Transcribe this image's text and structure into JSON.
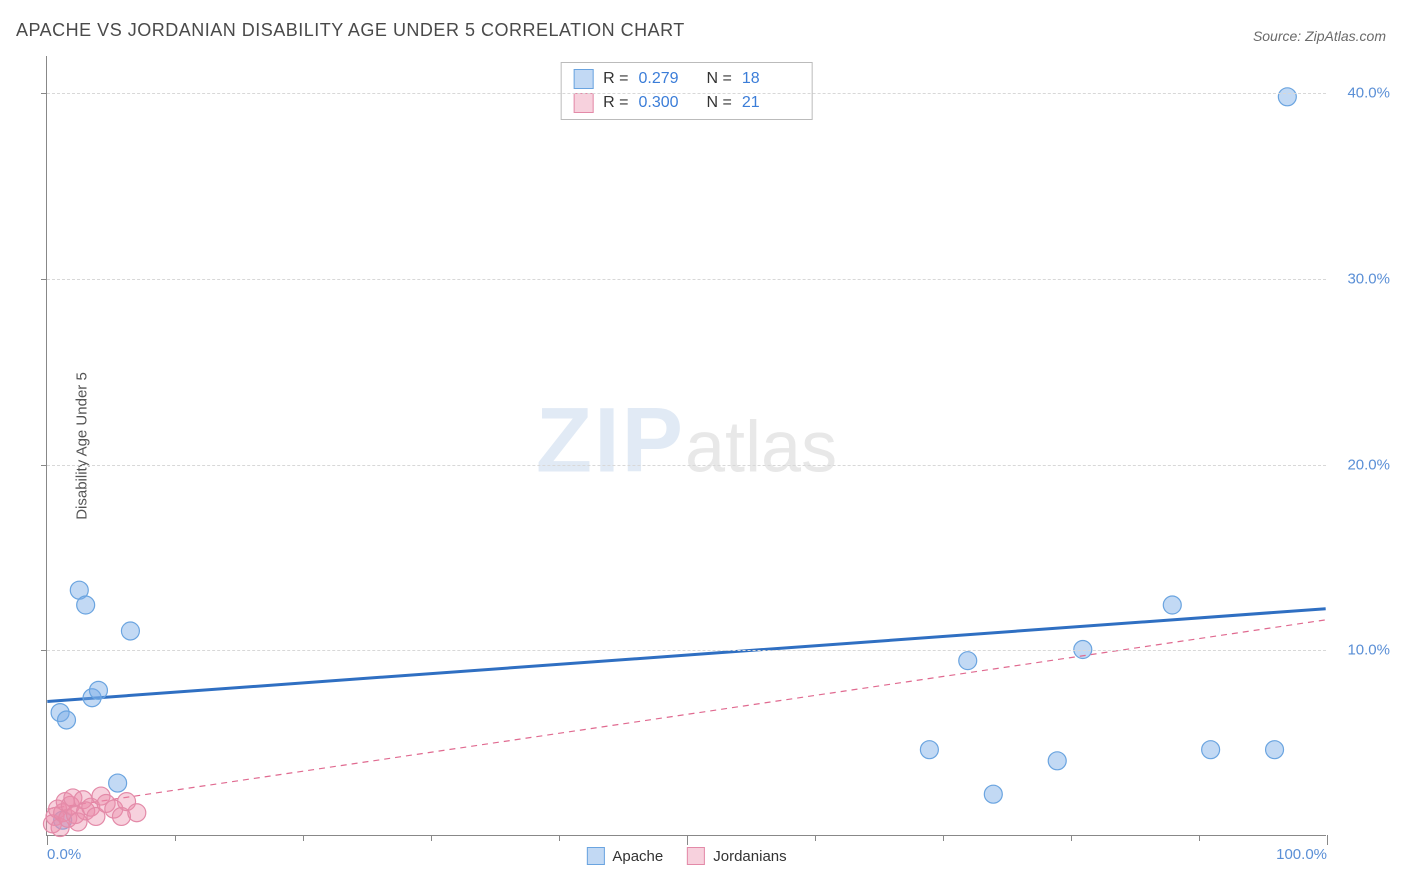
{
  "title": "APACHE VS JORDANIAN DISABILITY AGE UNDER 5 CORRELATION CHART",
  "source_label": "Source: ",
  "source_name": "ZipAtlas.com",
  "ylabel": "Disability Age Under 5",
  "watermark": {
    "zip": "ZIP",
    "atlas": "atlas"
  },
  "chart": {
    "type": "scatter",
    "xlim": [
      0,
      100
    ],
    "ylim": [
      0,
      42
    ],
    "y_gridlines": [
      10,
      20,
      30,
      40
    ],
    "y_tick_labels": [
      "10.0%",
      "20.0%",
      "30.0%",
      "40.0%"
    ],
    "x_tick_positions": [
      0,
      10,
      20,
      30,
      40,
      50,
      60,
      70,
      80,
      90,
      100
    ],
    "x_tick_labels_major": {
      "0": "0.0%",
      "100": "100.0%"
    },
    "background_color": "#ffffff",
    "grid_color": "#d8d8d8",
    "axis_color": "#888888",
    "tick_label_color": "#5a8fd6",
    "series": [
      {
        "name": "Apache",
        "color_fill": "rgba(120,170,230,0.45)",
        "color_stroke": "#6aa4e0",
        "trend_color": "#2f6fc2",
        "trend_width": 3,
        "trend_dash": "none",
        "marker_radius": 9,
        "R": "0.279",
        "N": "18",
        "trendline": {
          "x1": 0,
          "y1": 7.2,
          "x2": 100,
          "y2": 12.2
        },
        "points": [
          {
            "x": 1.0,
            "y": 6.6
          },
          {
            "x": 1.5,
            "y": 6.2
          },
          {
            "x": 2.5,
            "y": 13.2
          },
          {
            "x": 3.0,
            "y": 12.4
          },
          {
            "x": 3.5,
            "y": 7.4
          },
          {
            "x": 4.0,
            "y": 7.8
          },
          {
            "x": 5.5,
            "y": 2.8
          },
          {
            "x": 6.5,
            "y": 11.0
          },
          {
            "x": 1.2,
            "y": 0.8
          },
          {
            "x": 69.0,
            "y": 4.6
          },
          {
            "x": 72.0,
            "y": 9.4
          },
          {
            "x": 74.0,
            "y": 2.2
          },
          {
            "x": 79.0,
            "y": 4.0
          },
          {
            "x": 81.0,
            "y": 10.0
          },
          {
            "x": 88.0,
            "y": 12.4
          },
          {
            "x": 91.0,
            "y": 4.6
          },
          {
            "x": 96.0,
            "y": 4.6
          },
          {
            "x": 97.0,
            "y": 39.8
          }
        ]
      },
      {
        "name": "Jordanians",
        "color_fill": "rgba(235,140,170,0.40)",
        "color_stroke": "#e38aa8",
        "trend_color": "#e06a90",
        "trend_width": 1.2,
        "trend_dash": "6,5",
        "marker_radius": 9,
        "R": "0.300",
        "N": "21",
        "trendline": {
          "x1": 0,
          "y1": 1.4,
          "x2": 100,
          "y2": 11.6
        },
        "points": [
          {
            "x": 0.4,
            "y": 0.6
          },
          {
            "x": 0.6,
            "y": 1.0
          },
          {
            "x": 0.8,
            "y": 1.4
          },
          {
            "x": 1.0,
            "y": 0.4
          },
          {
            "x": 1.2,
            "y": 1.2
          },
          {
            "x": 1.4,
            "y": 1.8
          },
          {
            "x": 1.6,
            "y": 0.9
          },
          {
            "x": 1.8,
            "y": 1.6
          },
          {
            "x": 2.0,
            "y": 2.0
          },
          {
            "x": 2.2,
            "y": 1.1
          },
          {
            "x": 2.4,
            "y": 0.7
          },
          {
            "x": 2.8,
            "y": 1.9
          },
          {
            "x": 3.0,
            "y": 1.3
          },
          {
            "x": 3.4,
            "y": 1.5
          },
          {
            "x": 3.8,
            "y": 1.0
          },
          {
            "x": 4.2,
            "y": 2.1
          },
          {
            "x": 4.6,
            "y": 1.7
          },
          {
            "x": 5.2,
            "y": 1.4
          },
          {
            "x": 5.8,
            "y": 1.0
          },
          {
            "x": 6.2,
            "y": 1.8
          },
          {
            "x": 7.0,
            "y": 1.2
          }
        ]
      }
    ]
  },
  "legend_top": {
    "r_label": "R",
    "n_label": "N",
    "eq": "="
  },
  "legend_bottom": [
    {
      "label": "Apache",
      "fill": "rgba(120,170,230,0.45)",
      "stroke": "#6aa4e0"
    },
    {
      "label": "Jordanians",
      "fill": "rgba(235,140,170,0.40)",
      "stroke": "#e38aa8"
    }
  ]
}
